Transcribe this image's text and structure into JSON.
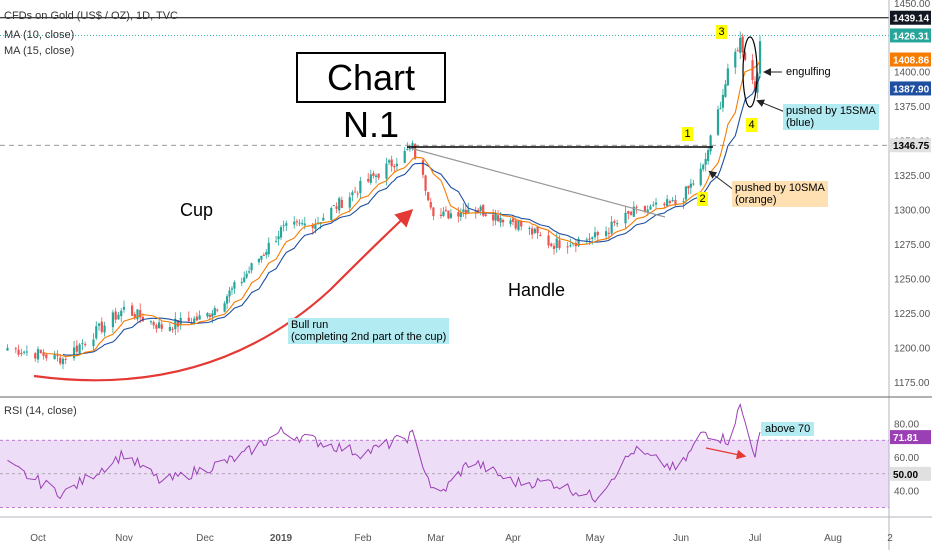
{
  "header": {
    "symbol": "CFDs on Gold (US$ / OZ), 1D, TVC",
    "ma10": "MA (10, close)",
    "ma15": "MA (15, close)",
    "rsi": "RSI (14, close)"
  },
  "annotations": {
    "title_box": "Chart N.1",
    "cup": "Cup",
    "handle": "Handle",
    "bull_run_line1": "Bull run",
    "bull_run_line2": "(completing 2nd part of the cup)",
    "engulfing": "engulfing",
    "pushed15_line1": "pushed by 15SMA",
    "pushed15_line2": "(blue)",
    "pushed10_line1": "pushed by 10SMA",
    "pushed10_line2": "(orange)",
    "above70": "above 70",
    "n1": "1",
    "n2": "2",
    "n3": "3",
    "n4": "4"
  },
  "colors": {
    "up": "#26a69a",
    "down": "#ef5350",
    "ma10": "#f57c00",
    "ma15": "#1e4fa0",
    "rsi_line": "#9b3fb5",
    "rsi_band": "#e8d4f5",
    "annotation_cyan": "#b2ebf2",
    "annotation_orange": "#ffe0b2",
    "marker_yellow": "#ffff00"
  },
  "chart_data": [
    {
      "type": "candlestick",
      "title": "CFDs on Gold (US$ / OZ), 1D, TVC",
      "ylim": [
        1165,
        1452
      ],
      "y_ticks": [
        1175,
        1200,
        1225,
        1250,
        1275,
        1300,
        1325,
        1350,
        1375,
        1400,
        1425,
        1450
      ],
      "x_ticks": [
        "Oct",
        "Nov",
        "Dec",
        "2019",
        "Feb",
        "Mar",
        "Apr",
        "May",
        "Jun",
        "Jul",
        "Aug",
        "2"
      ],
      "price_tags": [
        {
          "label": "1439.14",
          "value": 1439.14,
          "color": "#131722"
        },
        {
          "label": "1426.31",
          "value": 1426.31,
          "color": "#26a69a"
        },
        {
          "label": "1408.86",
          "value": 1408.86,
          "color": "#f57c00"
        },
        {
          "label": "1387.90",
          "value": 1387.9,
          "color": "#1e4fa0"
        },
        {
          "label": "1346.75",
          "value": 1346.75,
          "color": "#e0e0e0"
        }
      ],
      "reference_lines": [
        {
          "value": 1439.14,
          "style": "solid"
        },
        {
          "value": 1426.31,
          "style": "dotted"
        },
        {
          "value": 1346.75,
          "style": "dashed"
        }
      ],
      "key_points": [
        {
          "date": "Sep 20",
          "close": 1200
        },
        {
          "date": "Oct 10",
          "close": 1192
        },
        {
          "date": "Nov 1",
          "close": 1228
        },
        {
          "date": "Nov 15",
          "close": 1215
        },
        {
          "date": "Dec 1",
          "close": 1222
        },
        {
          "date": "Dec 15",
          "close": 1247
        },
        {
          "date": "Jan 1",
          "close": 1285
        },
        {
          "date": "Jan 15",
          "close": 1292
        },
        {
          "date": "Feb 1",
          "close": 1318
        },
        {
          "date": "Feb 20",
          "close": 1345
        },
        {
          "date": "Mar 1",
          "close": 1294
        },
        {
          "date": "Mar 15",
          "close": 1302
        },
        {
          "date": "Apr 1",
          "close": 1292
        },
        {
          "date": "Apr 15",
          "close": 1275
        },
        {
          "date": "May 1",
          "close": 1280
        },
        {
          "date": "May 15",
          "close": 1298
        },
        {
          "date": "May 31",
          "close": 1305
        },
        {
          "date": "Jun 10",
          "close": 1330
        },
        {
          "date": "Jun 20",
          "close": 1398
        },
        {
          "date": "Jun 25",
          "close": 1423
        },
        {
          "date": "Jul 1",
          "close": 1388
        },
        {
          "date": "Jul 3",
          "close": 1418
        }
      ]
    },
    {
      "type": "line",
      "title": "RSI (14, close)",
      "ylim": [
        25,
        95
      ],
      "y_ticks": [
        40,
        50,
        60,
        80
      ],
      "band": [
        30,
        70
      ],
      "last_value": 71.81,
      "price_tags": [
        {
          "label": "71.81",
          "value": 71.81,
          "color": "#9b3fb5"
        },
        {
          "label": "50.00",
          "value": 50,
          "color": "#e0e0e0"
        }
      ],
      "key_points": [
        {
          "date": "Sep 20",
          "value": 55
        },
        {
          "date": "Oct 10",
          "value": 38
        },
        {
          "date": "Nov 1",
          "value": 62
        },
        {
          "date": "Nov 15",
          "value": 45
        },
        {
          "date": "Dec 15",
          "value": 60
        },
        {
          "date": "Jan 1",
          "value": 75
        },
        {
          "date": "Feb 1",
          "value": 62
        },
        {
          "date": "Feb 20",
          "value": 73
        },
        {
          "date": "Mar 1",
          "value": 35
        },
        {
          "date": "Mar 15",
          "value": 58
        },
        {
          "date": "Apr 1",
          "value": 45
        },
        {
          "date": "Apr 15",
          "value": 45
        },
        {
          "date": "May 1",
          "value": 36
        },
        {
          "date": "May 15",
          "value": 64
        },
        {
          "date": "May 31",
          "value": 52
        },
        {
          "date": "Jun 10",
          "value": 75
        },
        {
          "date": "Jun 20",
          "value": 70
        },
        {
          "date": "Jun 25",
          "value": 90
        },
        {
          "date": "Jul 1",
          "value": 62
        },
        {
          "date": "Jul 3",
          "value": 71.81
        }
      ]
    }
  ]
}
